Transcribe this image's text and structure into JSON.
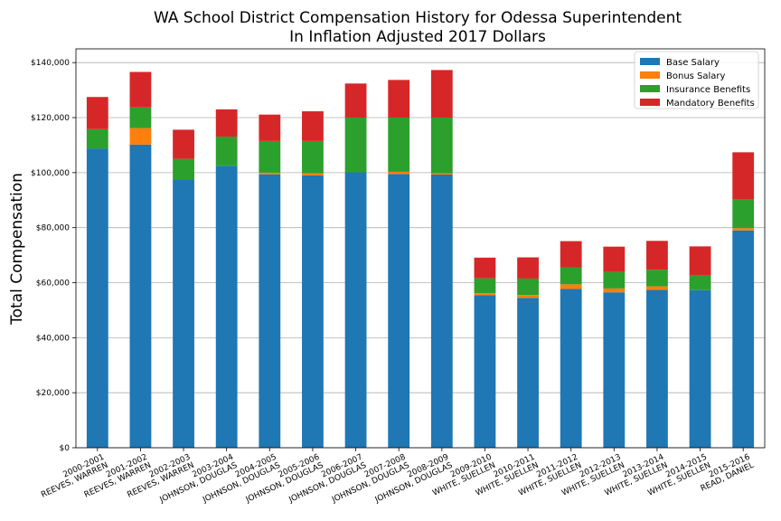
{
  "chart_data": {
    "type": "bar",
    "stacked": true,
    "title": "WA School District Compensation History for Odessa Superintendent",
    "subtitle": "In Inflation Adjusted 2017 Dollars",
    "xlabel": "",
    "ylabel": "Total Compensation",
    "ylim": [
      0,
      145000
    ],
    "yticks": [
      0,
      20000,
      40000,
      60000,
      80000,
      100000,
      120000,
      140000
    ],
    "ytick_labels": [
      "$0",
      "$20,000",
      "$40,000",
      "$60,000",
      "$80,000",
      "$100,000",
      "$120,000",
      "$140,000"
    ],
    "grid": "horizontal",
    "legend_position": "top-right",
    "categories": [
      [
        "2000-2001",
        "REEVES, WARREN"
      ],
      [
        "2001-2002",
        "REEVES, WARREN"
      ],
      [
        "2002-2003",
        "REEVES, WARREN"
      ],
      [
        "2003-2004",
        "JOHNSON, DOUGLAS"
      ],
      [
        "2004-2005",
        "JOHNSON, DOUGLAS"
      ],
      [
        "2005-2006",
        "JOHNSON, DOUGLAS"
      ],
      [
        "2006-2007",
        "JOHNSON, DOUGLAS"
      ],
      [
        "2007-2008",
        "JOHNSON, DOUGLAS"
      ],
      [
        "2008-2009",
        "JOHNSON, DOUGLAS"
      ],
      [
        "2009-2010",
        "WHITE, SUELLEN"
      ],
      [
        "2010-2011",
        "WHITE, SUELLEN"
      ],
      [
        "2011-2012",
        "WHITE, SUELLEN"
      ],
      [
        "2012-2013",
        "WHITE, SUELLEN"
      ],
      [
        "2013-2014",
        "WHITE, SUELLEN"
      ],
      [
        "2014-2015",
        "WHITE, SUELLEN"
      ],
      [
        "2015-2016",
        "READ, DANIEL"
      ]
    ],
    "series": [
      {
        "name": "Base Salary",
        "color": "#1f77b4",
        "values": [
          108800,
          110200,
          97500,
          102500,
          99400,
          99000,
          100100,
          99500,
          99300,
          55500,
          54500,
          57700,
          56500,
          57400,
          57300,
          79000
        ]
      },
      {
        "name": "Bonus Salary",
        "color": "#ff7f0e",
        "values": [
          0,
          6000,
          0,
          0,
          600,
          800,
          0,
          800,
          500,
          700,
          1000,
          1700,
          1400,
          1300,
          0,
          800
        ]
      },
      {
        "name": "Insurance Benefits",
        "color": "#2ca02c",
        "values": [
          7000,
          7500,
          7500,
          10600,
          11500,
          11700,
          19900,
          19700,
          20200,
          5400,
          6000,
          6200,
          6000,
          6000,
          5500,
          10400
        ]
      },
      {
        "name": "Mandatory Benefits",
        "color": "#d62728",
        "values": [
          11700,
          12900,
          10600,
          9900,
          9600,
          10800,
          12400,
          13700,
          17300,
          7500,
          7700,
          9500,
          9200,
          10500,
          10400,
          17200
        ]
      }
    ]
  }
}
